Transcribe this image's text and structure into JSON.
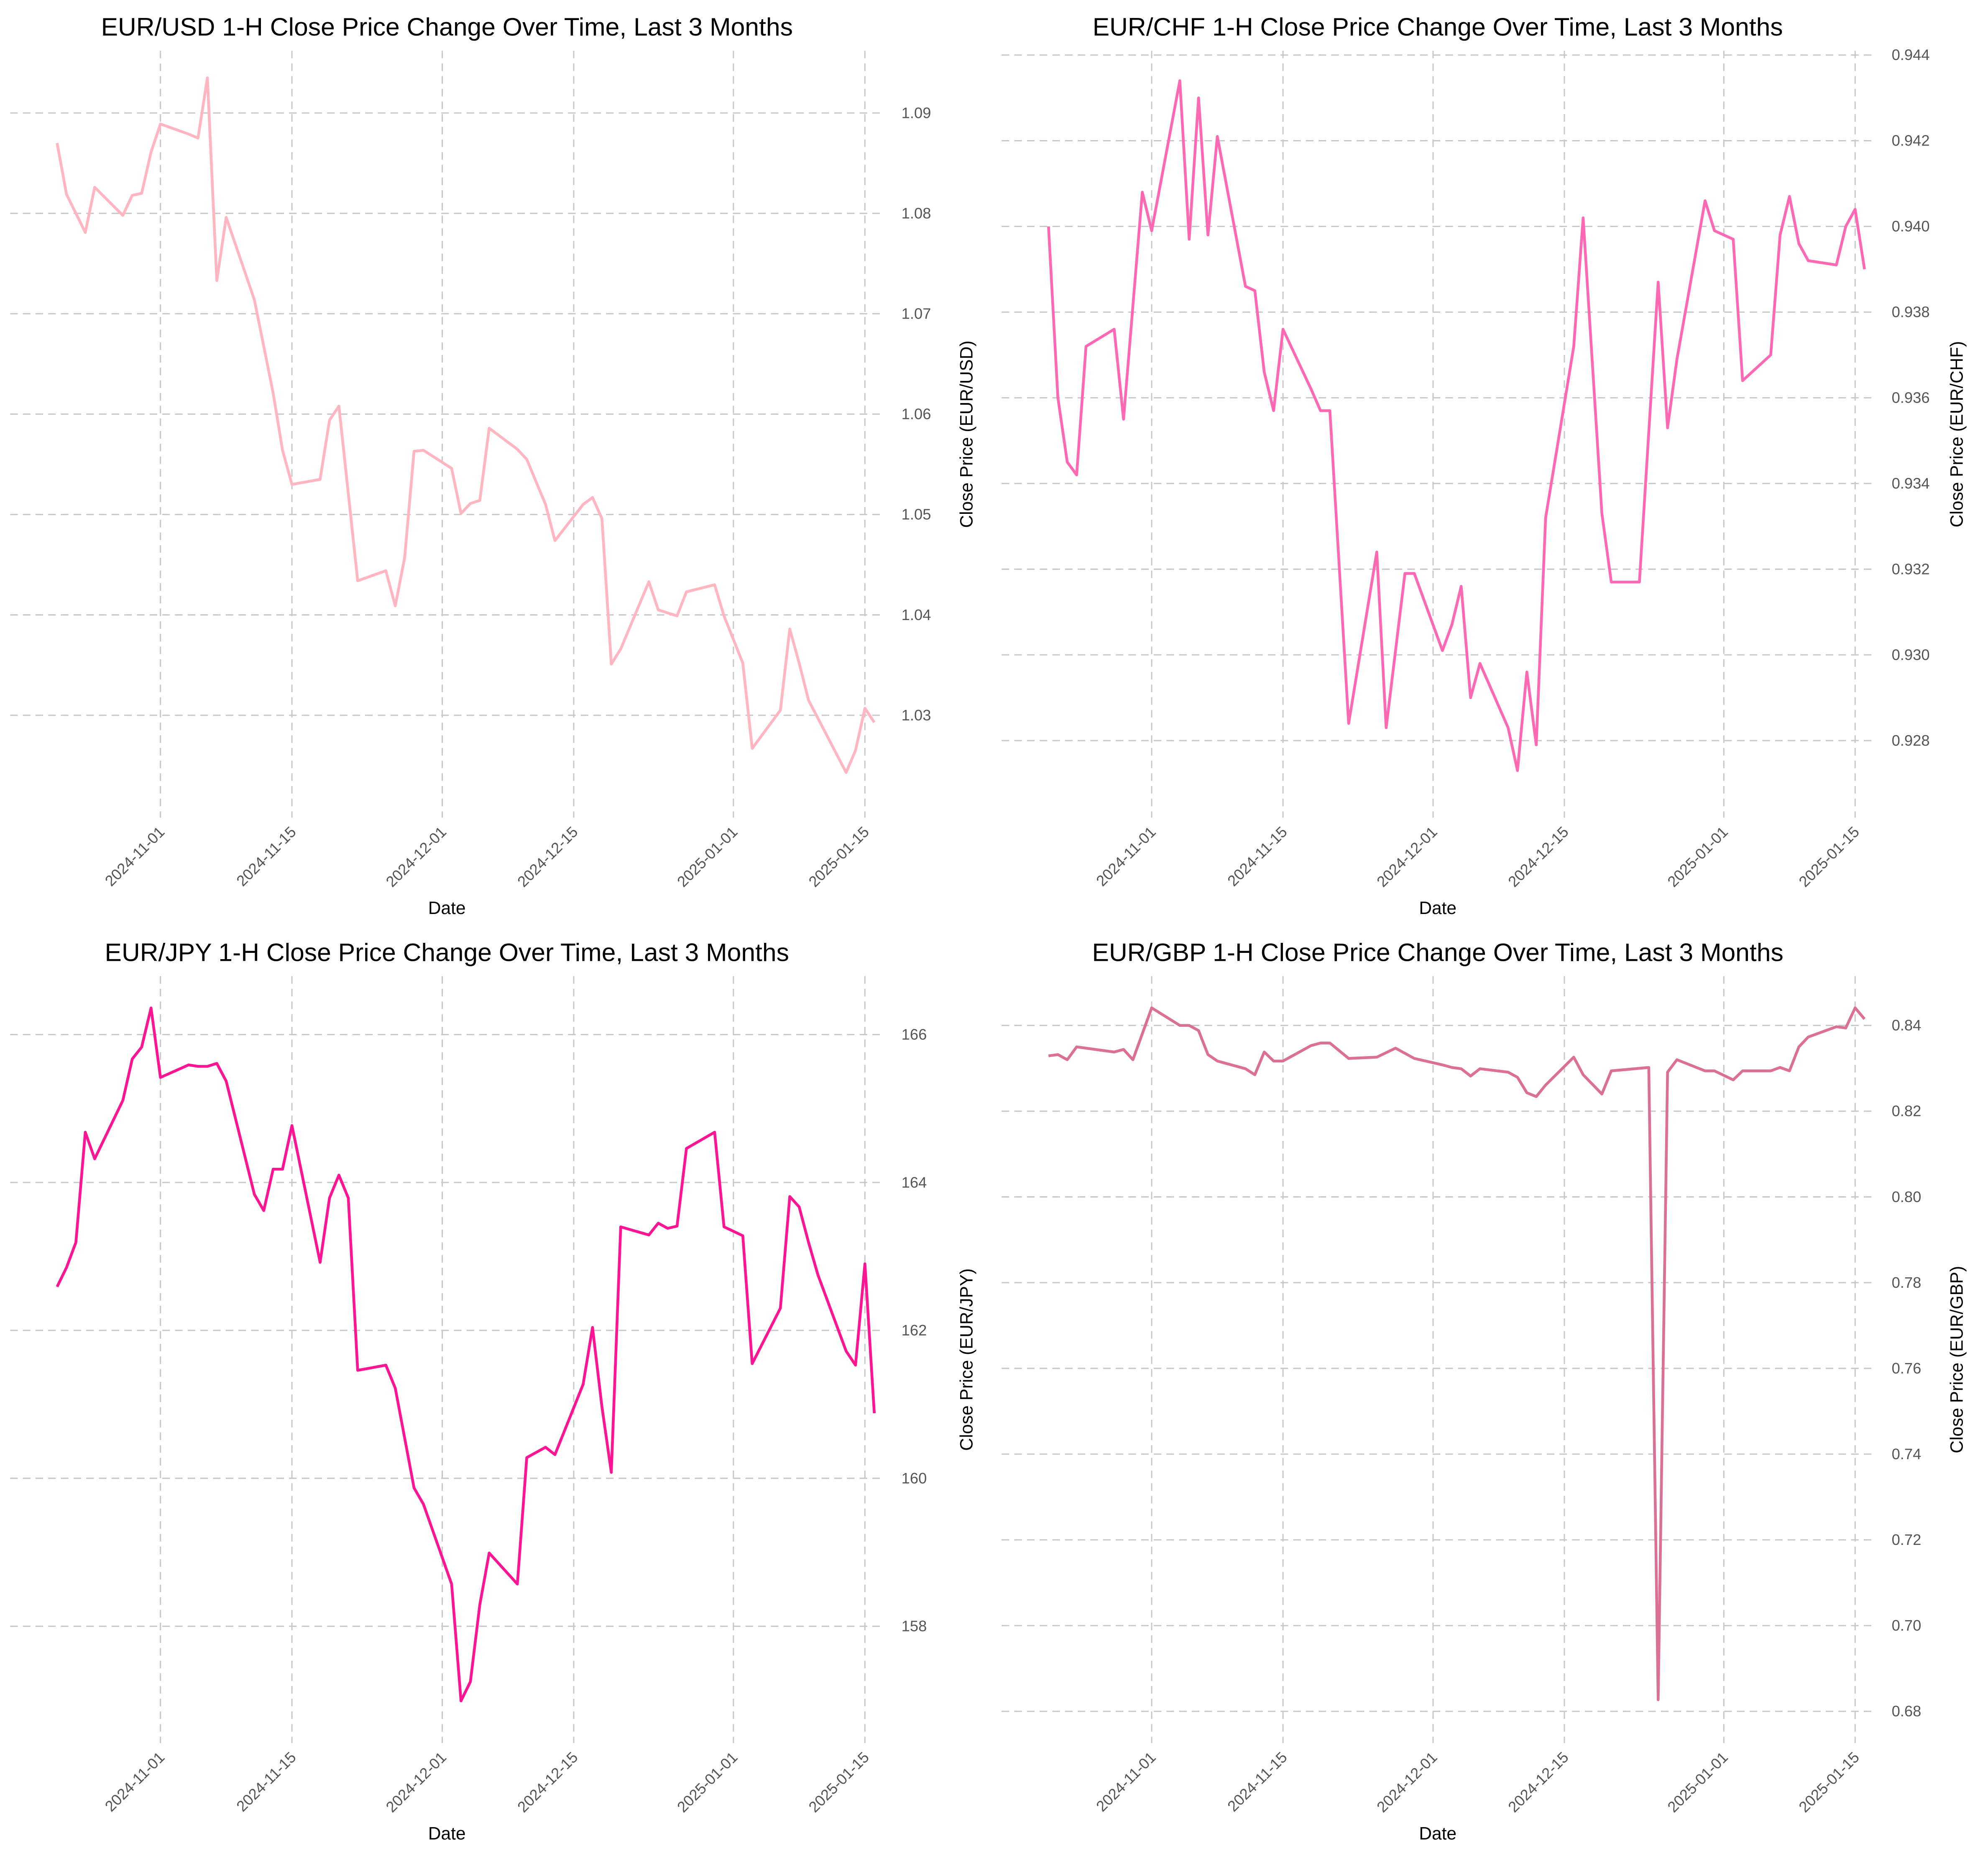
{
  "chart_data": [
    {
      "type": "line",
      "title": "EUR/USD 1-H Close Price Change Over Time, Last 3 Months",
      "xlabel": "Date",
      "ylabel": "Close Price (EUR/USD)",
      "color": "#ffb6c1",
      "grid": true,
      "xlim": [
        "2024-10-16",
        "2025-01-17"
      ],
      "xticks": [
        "2024-11-01",
        "2024-11-15",
        "2024-12-01",
        "2024-12-15",
        "2025-01-01",
        "2025-01-15"
      ],
      "ylim": [
        1.0198,
        1.0962
      ],
      "yticks": [
        1.03,
        1.04,
        1.05,
        1.06,
        1.07,
        1.08,
        1.09
      ],
      "x": [
        "2024-10-21",
        "2024-10-22",
        "2024-10-24",
        "2024-10-25",
        "2024-10-28",
        "2024-10-29",
        "2024-10-30",
        "2024-10-31",
        "2024-11-01",
        "2024-11-04",
        "2024-11-05",
        "2024-11-06",
        "2024-11-07",
        "2024-11-08",
        "2024-11-11",
        "2024-11-13",
        "2024-11-14",
        "2024-11-15",
        "2024-11-18",
        "2024-11-19",
        "2024-11-20",
        "2024-11-22",
        "2024-11-25",
        "2024-11-26",
        "2024-11-27",
        "2024-11-28",
        "2024-11-29",
        "2024-12-02",
        "2024-12-03",
        "2024-12-04",
        "2024-12-05",
        "2024-12-06",
        "2024-12-09",
        "2024-12-10",
        "2024-12-12",
        "2024-12-13",
        "2024-12-16",
        "2024-12-17",
        "2024-12-18",
        "2024-12-19",
        "2024-12-20",
        "2024-12-23",
        "2024-12-24",
        "2024-12-26",
        "2024-12-27",
        "2024-12-30",
        "2024-12-31",
        "2025-01-02",
        "2025-01-03",
        "2025-01-06",
        "2025-01-07",
        "2025-01-08",
        "2025-01-09",
        "2025-01-13",
        "2025-01-14",
        "2025-01-15",
        "2025-01-16"
      ],
      "values": [
        1.087,
        1.0819,
        1.0781,
        1.0826,
        1.0798,
        1.0818,
        1.082,
        1.0861,
        1.0889,
        1.0879,
        1.0875,
        1.0935,
        1.0733,
        1.0796,
        1.0714,
        1.0621,
        1.0564,
        1.053,
        1.0535,
        1.0594,
        1.0608,
        1.0434,
        1.0444,
        1.0409,
        1.0457,
        1.0563,
        1.0564,
        1.0546,
        1.0501,
        1.0511,
        1.0514,
        1.0586,
        1.0565,
        1.0555,
        1.051,
        1.0474,
        1.051,
        1.0517,
        1.0496,
        1.0351,
        1.0366,
        1.0433,
        1.0405,
        1.0399,
        1.0423,
        1.043,
        1.0399,
        1.0352,
        1.0267,
        1.0305,
        1.0386,
        1.0352,
        1.0315,
        1.0243,
        1.0265,
        1.0307,
        1.0293
      ]
    },
    {
      "type": "line",
      "title": "EUR/CHF 1-H Close Price Change Over Time, Last 3 Months",
      "xlabel": "Date",
      "ylabel": "Close Price (EUR/CHF)",
      "color": "#ff69b4",
      "grid": true,
      "xlim": [
        "2024-10-16",
        "2025-01-17"
      ],
      "xticks": [
        "2024-11-01",
        "2024-11-15",
        "2024-12-01",
        "2024-12-15",
        "2025-01-01",
        "2025-01-15"
      ],
      "ylim": [
        0.9262,
        0.9441
      ],
      "yticks": [
        0.928,
        {
          "value": 0.93,
          "label": "0.930"
        },
        0.932,
        0.934,
        0.936,
        0.938,
        {
          "value": 0.94,
          "label": "0.940"
        },
        0.942,
        0.944
      ],
      "x": [
        "2024-10-21",
        "2024-10-22",
        "2024-10-23",
        "2024-10-24",
        "2024-10-25",
        "2024-10-28",
        "2024-10-29",
        "2024-10-31",
        "2024-11-01",
        "2024-11-04",
        "2024-11-05",
        "2024-11-06",
        "2024-11-07",
        "2024-11-08",
        "2024-11-11",
        "2024-11-12",
        "2024-11-13",
        "2024-11-14",
        "2024-11-15",
        "2024-11-18",
        "2024-11-19",
        "2024-11-20",
        "2024-11-22",
        "2024-11-25",
        "2024-11-26",
        "2024-11-28",
        "2024-11-29",
        "2024-12-02",
        "2024-12-03",
        "2024-12-04",
        "2024-12-05",
        "2024-12-06",
        "2024-12-09",
        "2024-12-10",
        "2024-12-11",
        "2024-12-12",
        "2024-12-13",
        "2024-12-16",
        "2024-12-17",
        "2024-12-19",
        "2024-12-20",
        "2024-12-23",
        "2024-12-25",
        "2024-12-26",
        "2024-12-27",
        "2024-12-30",
        "2024-12-31",
        "2025-01-02",
        "2025-01-03",
        "2025-01-06",
        "2025-01-07",
        "2025-01-08",
        "2025-01-09",
        "2025-01-10",
        "2025-01-13",
        "2025-01-14",
        "2025-01-15",
        "2025-01-16"
      ],
      "values": [
        0.94,
        0.936,
        0.9345,
        0.9342,
        0.9372,
        0.9376,
        0.9355,
        0.9408,
        0.9399,
        0.9434,
        0.9397,
        0.943,
        0.9398,
        0.9421,
        0.9386,
        0.9385,
        0.9366,
        0.9357,
        0.9376,
        0.9362,
        0.9357,
        0.9357,
        0.9284,
        0.9324,
        0.9283,
        0.9319,
        0.9319,
        0.9301,
        0.9307,
        0.9316,
        0.929,
        0.9298,
        0.9283,
        0.9273,
        0.9296,
        0.9279,
        0.9332,
        0.9372,
        0.9402,
        0.9333,
        0.9317,
        0.9317,
        0.9387,
        0.9353,
        0.9369,
        0.9406,
        0.9399,
        0.9397,
        0.9364,
        0.937,
        0.9398,
        0.9407,
        0.9396,
        0.9392,
        0.9391,
        0.94,
        0.9404,
        0.939
      ]
    },
    {
      "type": "line",
      "title": "EUR/JPY 1-H Close Price Change Over Time, Last 3 Months",
      "xlabel": "Date",
      "ylabel": "Close Price (EUR/JPY)",
      "color": "#ff1493",
      "grid": true,
      "xlim": [
        "2024-10-16",
        "2025-01-17"
      ],
      "xticks": [
        "2024-11-01",
        "2024-11-15",
        "2024-12-01",
        "2024-12-15",
        "2025-01-01",
        "2025-01-15"
      ],
      "ylim": [
        156.42,
        166.79
      ],
      "yticks": [
        158,
        160,
        162,
        164,
        166
      ],
      "x": [
        "2024-10-21",
        "2024-10-22",
        "2024-10-23",
        "2024-10-24",
        "2024-10-25",
        "2024-10-28",
        "2024-10-29",
        "2024-10-30",
        "2024-10-31",
        "2024-11-01",
        "2024-11-04",
        "2024-11-05",
        "2024-11-06",
        "2024-11-07",
        "2024-11-08",
        "2024-11-11",
        "2024-11-12",
        "2024-11-13",
        "2024-11-14",
        "2024-11-15",
        "2024-11-18",
        "2024-11-19",
        "2024-11-20",
        "2024-11-21",
        "2024-11-22",
        "2024-11-25",
        "2024-11-26",
        "2024-11-28",
        "2024-11-29",
        "2024-12-02",
        "2024-12-03",
        "2024-12-04",
        "2024-12-05",
        "2024-12-06",
        "2024-12-09",
        "2024-12-10",
        "2024-12-12",
        "2024-12-13",
        "2024-12-16",
        "2024-12-17",
        "2024-12-18",
        "2024-12-19",
        "2024-12-20",
        "2024-12-23",
        "2024-12-24",
        "2024-12-25",
        "2024-12-26",
        "2024-12-27",
        "2024-12-30",
        "2024-12-31",
        "2025-01-02",
        "2025-01-03",
        "2025-01-06",
        "2025-01-07",
        "2025-01-08",
        "2025-01-09",
        "2025-01-10",
        "2025-01-13",
        "2025-01-14",
        "2025-01-15",
        "2025-01-16"
      ],
      "values": [
        162.59,
        162.85,
        163.19,
        164.68,
        164.32,
        165.11,
        165.67,
        165.83,
        166.36,
        165.42,
        165.59,
        165.57,
        165.57,
        165.61,
        165.37,
        163.84,
        163.62,
        164.18,
        164.18,
        164.77,
        162.92,
        163.79,
        164.1,
        163.79,
        161.46,
        161.53,
        161.22,
        159.87,
        159.65,
        158.57,
        156.99,
        157.25,
        158.29,
        158.99,
        158.57,
        160.28,
        160.42,
        160.32,
        161.27,
        162.04,
        160.97,
        160.08,
        163.4,
        163.29,
        163.45,
        163.38,
        163.41,
        164.46,
        164.68,
        163.4,
        163.28,
        161.55,
        162.3,
        163.81,
        163.67,
        163.19,
        162.75,
        161.72,
        161.53,
        162.9,
        160.88
      ]
    },
    {
      "type": "line",
      "title": "EUR/GBP 1-H Close Price Change Over Time, Last 3 Months",
      "xlabel": "Date",
      "ylabel": "Close Price (EUR/GBP)",
      "color": "#db7093",
      "grid": true,
      "xlim": [
        "2024-10-16",
        "2025-01-17"
      ],
      "xticks": [
        "2024-11-01",
        "2024-11-15",
        "2024-12-01",
        "2024-12-15",
        "2025-01-01",
        "2025-01-15"
      ],
      "ylim": [
        0.6726,
        0.8515
      ],
      "yticks": [
        0.68,
        {
          "value": 0.7,
          "label": "0.70"
        },
        0.72,
        0.74,
        0.76,
        0.78,
        {
          "value": 0.8,
          "label": "0.80"
        },
        0.82,
        0.84
      ],
      "x": [
        "2024-10-21",
        "2024-10-22",
        "2024-10-23",
        "2024-10-24",
        "2024-10-28",
        "2024-10-29",
        "2024-10-30",
        "2024-11-01",
        "2024-11-04",
        "2024-11-05",
        "2024-11-06",
        "2024-11-07",
        "2024-11-08",
        "2024-11-11",
        "2024-11-12",
        "2024-11-13",
        "2024-11-14",
        "2024-11-15",
        "2024-11-18",
        "2024-11-19",
        "2024-11-20",
        "2024-11-22",
        "2024-11-25",
        "2024-11-27",
        "2024-11-29",
        "2024-12-02",
        "2024-12-03",
        "2024-12-04",
        "2024-12-05",
        "2024-12-06",
        "2024-12-09",
        "2024-12-10",
        "2024-12-11",
        "2024-12-12",
        "2024-12-13",
        "2024-12-16",
        "2024-12-17",
        "2024-12-19",
        "2024-12-20",
        "2024-12-24",
        "2024-12-25",
        "2024-12-26",
        "2024-12-27",
        "2024-12-30",
        "2024-12-31",
        "2025-01-02",
        "2025-01-03",
        "2025-01-06",
        "2025-01-07",
        "2025-01-08",
        "2025-01-09",
        "2025-01-10",
        "2025-01-13",
        "2025-01-14",
        "2025-01-15",
        "2025-01-16"
      ],
      "values": [
        0.8329,
        0.8332,
        0.832,
        0.835,
        0.8338,
        0.8344,
        0.832,
        0.8441,
        0.84,
        0.84,
        0.8388,
        0.8332,
        0.8317,
        0.8299,
        0.8285,
        0.8338,
        0.8317,
        0.8317,
        0.8353,
        0.8359,
        0.8359,
        0.8323,
        0.8326,
        0.8347,
        0.8323,
        0.8308,
        0.8302,
        0.8299,
        0.8282,
        0.8299,
        0.8291,
        0.8279,
        0.8243,
        0.8234,
        0.8261,
        0.8326,
        0.8285,
        0.824,
        0.8294,
        0.8302,
        0.6827,
        0.8291,
        0.832,
        0.8294,
        0.8294,
        0.8273,
        0.8294,
        0.8294,
        0.8302,
        0.8294,
        0.835,
        0.8373,
        0.8397,
        0.8394,
        0.8441,
        0.8415
      ]
    }
  ]
}
